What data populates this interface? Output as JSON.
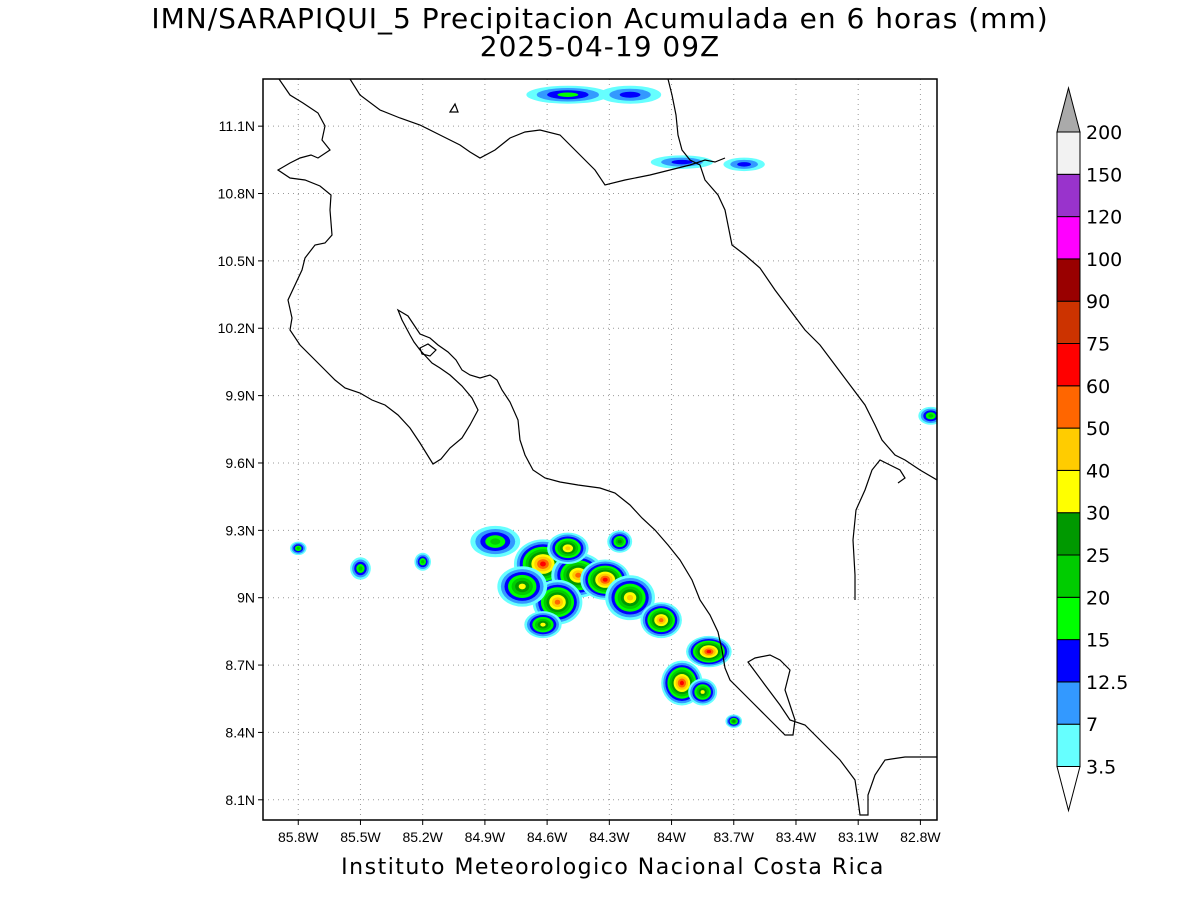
{
  "title": "IMN/SARAPIQUI_5 Precipitacion Acumulada en 6 horas (mm)",
  "subtitle": "2025-04-19 09Z",
  "footer": "Instituto Meteorologico Nacional Costa Rica",
  "map": {
    "lon_range": [
      -85.97,
      -82.72
    ],
    "lat_range": [
      8.01,
      11.31
    ],
    "lon_ticks": [
      {
        "value": -85.8,
        "label": "85.8W"
      },
      {
        "value": -85.5,
        "label": "85.5W"
      },
      {
        "value": -85.2,
        "label": "85.2W"
      },
      {
        "value": -84.9,
        "label": "84.9W"
      },
      {
        "value": -84.6,
        "label": "84.6W"
      },
      {
        "value": -84.3,
        "label": "84.3W"
      },
      {
        "value": -84.0,
        "label": "84W"
      },
      {
        "value": -83.7,
        "label": "83.7W"
      },
      {
        "value": -83.4,
        "label": "83.4W"
      },
      {
        "value": -83.1,
        "label": "83.1W"
      },
      {
        "value": -82.8,
        "label": "82.8W"
      }
    ],
    "lat_ticks": [
      {
        "value": 8.1,
        "label": "8.1N"
      },
      {
        "value": 8.4,
        "label": "8.4N"
      },
      {
        "value": 8.7,
        "label": "8.7N"
      },
      {
        "value": 9.0,
        "label": "9N"
      },
      {
        "value": 9.3,
        "label": "9.3N"
      },
      {
        "value": 9.6,
        "label": "9.6N"
      },
      {
        "value": 9.9,
        "label": "9.9N"
      },
      {
        "value": 10.2,
        "label": "10.2N"
      },
      {
        "value": 10.5,
        "label": "10.5N"
      },
      {
        "value": 10.8,
        "label": "10.8N"
      },
      {
        "value": 11.1,
        "label": "11.1N"
      }
    ],
    "grid": true
  },
  "colorbar": {
    "levels": [
      {
        "label": "3.5",
        "color": "#66ffff"
      },
      {
        "label": "7",
        "color": "#3399ff"
      },
      {
        "label": "12.5",
        "color": "#0000ff"
      },
      {
        "label": "15",
        "color": "#00ff00"
      },
      {
        "label": "20",
        "color": "#00cc00"
      },
      {
        "label": "25",
        "color": "#009900"
      },
      {
        "label": "30",
        "color": "#ffff00"
      },
      {
        "label": "40",
        "color": "#ffcc00"
      },
      {
        "label": "50",
        "color": "#ff6600"
      },
      {
        "label": "60",
        "color": "#ff0000"
      },
      {
        "label": "75",
        "color": "#cc3300"
      },
      {
        "label": "90",
        "color": "#990000"
      },
      {
        "label": "100",
        "color": "#ff00ff"
      },
      {
        "label": "120",
        "color": "#9933cc"
      },
      {
        "label": "150",
        "color": "#f2f2f2"
      },
      {
        "label": "200",
        "color": "#aaaaaa"
      }
    ],
    "under_color": "#ffffff",
    "over_color": "#aaaaaa"
  },
  "rain_cells": [
    {
      "lon": -84.62,
      "lat": 9.15,
      "rx": 0.14,
      "ry": 0.11,
      "peak": 9
    },
    {
      "lon": -84.45,
      "lat": 9.1,
      "rx": 0.13,
      "ry": 0.1,
      "peak": 8
    },
    {
      "lon": -84.32,
      "lat": 9.08,
      "rx": 0.12,
      "ry": 0.09,
      "peak": 9
    },
    {
      "lon": -84.55,
      "lat": 8.98,
      "rx": 0.12,
      "ry": 0.1,
      "peak": 8
    },
    {
      "lon": -84.72,
      "lat": 9.05,
      "rx": 0.12,
      "ry": 0.09,
      "peak": 6
    },
    {
      "lon": -84.85,
      "lat": 9.25,
      "rx": 0.12,
      "ry": 0.07,
      "peak": 4
    },
    {
      "lon": -84.2,
      "lat": 9.0,
      "rx": 0.12,
      "ry": 0.1,
      "peak": 7
    },
    {
      "lon": -84.05,
      "lat": 8.9,
      "rx": 0.1,
      "ry": 0.08,
      "peak": 8
    },
    {
      "lon": -84.5,
      "lat": 9.22,
      "rx": 0.1,
      "ry": 0.07,
      "peak": 7
    },
    {
      "lon": -83.82,
      "lat": 8.76,
      "rx": 0.11,
      "ry": 0.07,
      "peak": 9
    },
    {
      "lon": -83.95,
      "lat": 8.62,
      "rx": 0.1,
      "ry": 0.1,
      "peak": 9
    },
    {
      "lon": -83.85,
      "lat": 8.58,
      "rx": 0.07,
      "ry": 0.06,
      "peak": 6
    },
    {
      "lon": -84.62,
      "lat": 8.88,
      "rx": 0.09,
      "ry": 0.06,
      "peak": 6
    },
    {
      "lon": -84.25,
      "lat": 9.25,
      "rx": 0.06,
      "ry": 0.05,
      "peak": 5
    },
    {
      "lon": -83.7,
      "lat": 8.45,
      "rx": 0.04,
      "ry": 0.03,
      "peak": 5
    },
    {
      "lon": -85.8,
      "lat": 9.22,
      "rx": 0.04,
      "ry": 0.03,
      "peak": 4
    },
    {
      "lon": -85.5,
      "lat": 9.13,
      "rx": 0.05,
      "ry": 0.05,
      "peak": 4
    },
    {
      "lon": -85.2,
      "lat": 9.16,
      "rx": 0.04,
      "ry": 0.04,
      "peak": 4
    },
    {
      "lon": -82.75,
      "lat": 9.81,
      "rx": 0.06,
      "ry": 0.04,
      "peak": 4
    },
    {
      "lon": -84.5,
      "lat": 11.24,
      "rx": 0.2,
      "ry": 0.04,
      "peak": 3
    },
    {
      "lon": -84.2,
      "lat": 11.24,
      "rx": 0.15,
      "ry": 0.04,
      "peak": 2
    },
    {
      "lon": -83.95,
      "lat": 10.94,
      "rx": 0.15,
      "ry": 0.03,
      "peak": 2
    },
    {
      "lon": -83.65,
      "lat": 10.93,
      "rx": 0.1,
      "ry": 0.03,
      "peak": 2
    }
  ]
}
